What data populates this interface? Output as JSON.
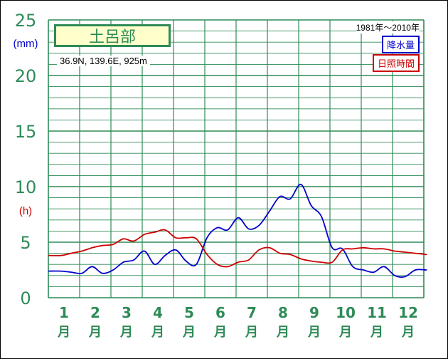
{
  "station": {
    "name": "土呂部",
    "coords": "36.9N,  139.6E,  925m",
    "period": "1981年〜2010年"
  },
  "legend": {
    "precip": "降水量",
    "sunshine": "日照時間"
  },
  "units": {
    "precip": "(mm)",
    "sunshine": "(h)"
  },
  "colors": {
    "grid": "#2e8b57",
    "precip": "#0000cc",
    "sunshine": "#cc0000",
    "axis_text": "#2e8b57"
  },
  "chart_data": {
    "type": "line",
    "title": "土呂部",
    "ylim": [
      0,
      25
    ],
    "yticks": [
      "0",
      "5",
      "10",
      "15",
      "20",
      "25"
    ],
    "month_numbers": [
      "1",
      "2",
      "3",
      "4",
      "5",
      "6",
      "7",
      "8",
      "9",
      "10",
      "11",
      "12"
    ],
    "month_suffix": "月",
    "x": [
      1,
      1.33,
      1.67,
      2,
      2.33,
      2.67,
      3,
      3.33,
      3.67,
      4,
      4.33,
      4.67,
      5,
      5.33,
      5.67,
      6,
      6.33,
      6.67,
      7,
      7.33,
      7.67,
      8,
      8.33,
      8.67,
      9,
      9.33,
      9.67,
      10,
      10.33,
      10.67,
      11,
      11.33,
      11.67,
      12,
      12.33,
      12.67
    ],
    "series": [
      {
        "name": "降水量",
        "values": [
          2.4,
          2.3,
          2.2,
          2.8,
          2.2,
          2.5,
          3.2,
          3.4,
          4.2,
          3.0,
          3.8,
          4.3,
          3.3,
          3.0,
          5.4,
          6.3,
          6.1,
          7.2,
          6.2,
          6.5,
          7.8,
          9.1,
          8.9,
          10.2,
          8.3,
          7.3,
          4.5,
          4.4,
          2.8,
          2.5,
          2.3,
          2.8,
          2.0,
          1.9,
          2.5,
          2.5
        ]
      },
      {
        "name": "日照時間",
        "values": [
          3.8,
          4.0,
          4.2,
          4.5,
          4.7,
          4.8,
          5.3,
          5.1,
          5.7,
          5.9,
          6.1,
          5.4,
          5.4,
          5.3,
          3.9,
          3.0,
          2.8,
          3.2,
          3.4,
          4.3,
          4.5,
          4.0,
          3.9,
          3.5,
          3.3,
          3.2,
          3.2,
          4.3,
          4.4,
          4.5,
          4.4,
          4.4,
          4.2,
          4.1,
          4.0,
          3.9
        ]
      }
    ]
  }
}
